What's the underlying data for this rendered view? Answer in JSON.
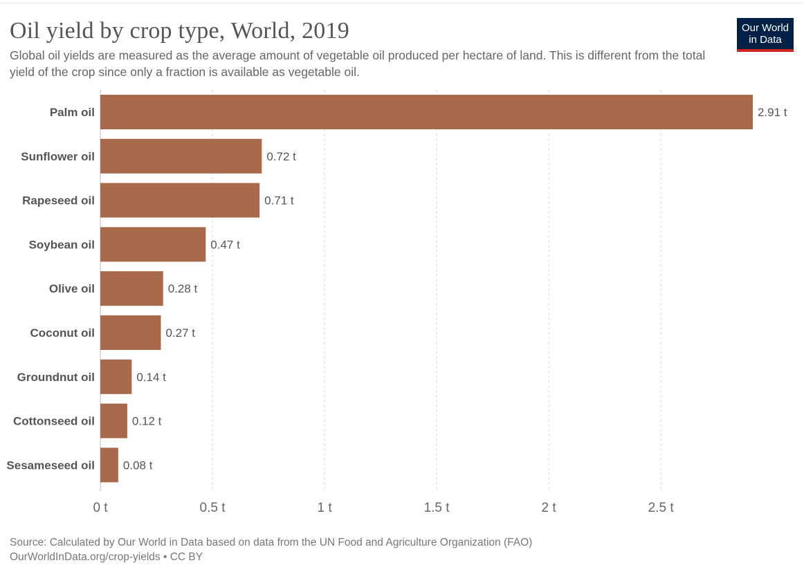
{
  "header": {
    "title": "Oil yield by crop type, World, 2019",
    "subtitle": "Global oil yields are measured as the average amount of vegetable oil produced per hectare of land. This is different from the total yield of the crop since only a fraction is available as vegetable oil."
  },
  "logo": {
    "line1": "Our World",
    "line2": "in Data",
    "bg_color": "#002147",
    "accent_color": "#ce261e"
  },
  "chart_data": {
    "type": "bar",
    "orientation": "horizontal",
    "categories": [
      "Palm oil",
      "Sunflower oil",
      "Rapeseed oil",
      "Soybean oil",
      "Olive oil",
      "Coconut oil",
      "Groundnut oil",
      "Cottonseed oil",
      "Sesameseed oil"
    ],
    "values": [
      2.91,
      0.72,
      0.71,
      0.47,
      0.28,
      0.27,
      0.14,
      0.12,
      0.08
    ],
    "value_labels": [
      "2.91 t",
      "0.72 t",
      "0.71 t",
      "0.47 t",
      "0.28 t",
      "0.27 t",
      "0.14 t",
      "0.12 t",
      "0.08 t"
    ],
    "x_ticks": [
      0,
      0.5,
      1,
      1.5,
      2,
      2.5
    ],
    "x_tick_labels": [
      "0 t",
      "0.5 t",
      "1 t",
      "1.5 t",
      "2 t",
      "2.5 t"
    ],
    "xlim": [
      0,
      2.91
    ],
    "bar_color": "#a86a4a",
    "grid": "vertical dashed"
  },
  "footer": {
    "source": "Source: Calculated by Our World in Data based on data from the UN Food and Agriculture Organization (FAO)",
    "link": "OurWorldInData.org/crop-yields • CC BY"
  }
}
